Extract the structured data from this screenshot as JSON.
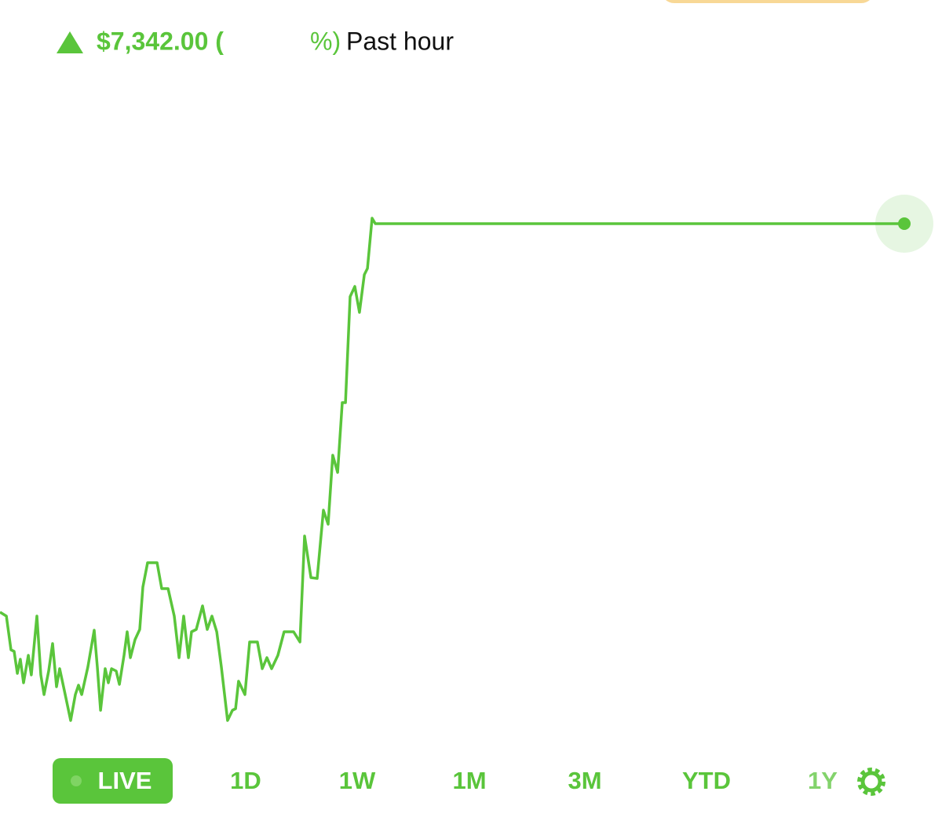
{
  "header": {
    "change_prefix": "$7,342.00 (",
    "change_suffix": "%)",
    "period": "Past hour"
  },
  "chart_data": {
    "type": "line",
    "color": "#5ac53b",
    "x": [
      0,
      0.42,
      0.73,
      0.94,
      1.15,
      1.35,
      1.56,
      1.88,
      2.08,
      2.45,
      2.71,
      2.92,
      3.23,
      3.49,
      3.75,
      3.96,
      4.27,
      4.69,
      5,
      5.21,
      5.42,
      5.83,
      6.25,
      6.46,
      6.67,
      6.98,
      7.19,
      7.4,
      7.71,
      7.92,
      8.23,
      8.44,
      8.65,
      8.96,
      9.27,
      9.48,
      9.79,
      10.42,
      10.73,
      11.15,
      11.56,
      11.88,
      12.19,
      12.5,
      12.71,
      13.02,
      13.44,
      13.75,
      14.06,
      14.38,
      14.69,
      15.1,
      15.42,
      15.63,
      15.83,
      16.25,
      16.56,
      17.08,
      17.4,
      17.71,
      18.02,
      18.44,
      18.85,
      19.48,
      19.9,
      20.21,
      20.63,
      21.04,
      21.46,
      21.77,
      22.08,
      22.4,
      22.71,
      22.92,
      23.23,
      23.54,
      23.85,
      24.17,
      24.38,
      24.69,
      24.9,
      60
    ],
    "values": [
      15,
      14.5,
      10.2,
      10,
      7.2,
      9,
      6,
      9.5,
      7,
      14.5,
      7,
      4.5,
      7.5,
      11,
      5.5,
      7.8,
      5,
      1.2,
      4.5,
      5.7,
      4.5,
      8,
      12.7,
      8,
      2.5,
      7.8,
      6,
      7.8,
      7.5,
      5.8,
      9.5,
      12.5,
      9.2,
      11.5,
      12.8,
      18.2,
      21.3,
      21.3,
      18,
      18,
      14.5,
      9.2,
      14.5,
      9.2,
      12.5,
      12.8,
      15.8,
      12.8,
      14.5,
      12.5,
      8,
      1.2,
      2.5,
      2.7,
      6.2,
      4.5,
      11.2,
      11.2,
      7.8,
      9.2,
      7.8,
      9.5,
      12.5,
      12.5,
      11.2,
      24.7,
      19.4,
      19.3,
      28,
      26.2,
      35,
      32.8,
      41.7,
      41.7,
      55.2,
      56.5,
      53.2,
      58,
      58.8,
      65.2,
      64.5,
      64.5
    ]
  },
  "ranges": [
    "LIVE",
    "1D",
    "1W",
    "1M",
    "3M",
    "YTD",
    "1Y"
  ]
}
